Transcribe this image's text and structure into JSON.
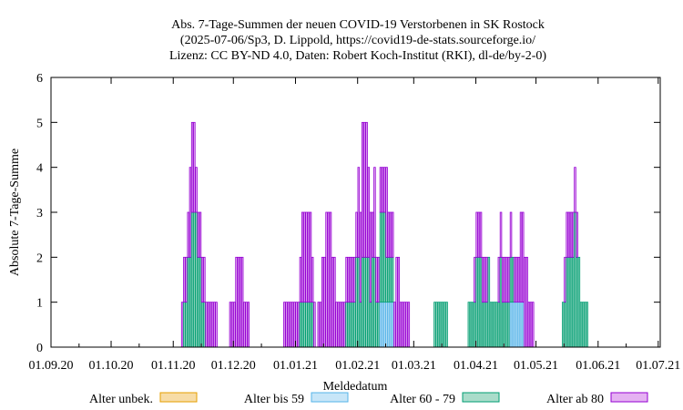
{
  "chart_data": {
    "type": "bar",
    "stacked": true,
    "title": [
      "Abs. 7-Tage-Summen der neuen COVID-19 Verstorbenen in SK Rostock",
      "(2025-07-06/Sp3, D. Lippold, https://covid19-de-stats.sourceforge.io/",
      "Lizenz: CC BY-ND 4.0, Daten: Robert Koch-Institut (RKI), dl-de/by-2-0)"
    ],
    "xlabel": "Meldedatum",
    "ylabel": "Absolute 7-Tage-Summe",
    "x_start": "2020-09-01",
    "x_end": "2021-07-01",
    "ylim": [
      0,
      6
    ],
    "xticks": [
      "01.09.20",
      "01.10.20",
      "01.11.20",
      "01.12.20",
      "01.01.21",
      "01.02.21",
      "01.03.21",
      "01.04.21",
      "01.05.21",
      "01.06.21",
      "01.07.21"
    ],
    "yticks": [
      "0",
      "1",
      "2",
      "3",
      "4",
      "5",
      "6"
    ],
    "grid": false,
    "legend_position": "bottom",
    "series": [
      {
        "name": "Alter unbek.",
        "color": "#e69f00",
        "fill": "#f7dca6",
        "segments": []
      },
      {
        "name": "Alter bis 59",
        "color": "#56b4e9",
        "fill": "#c7e6f8",
        "segments": [
          {
            "start": "2021-02-12",
            "end": "2021-02-18",
            "value": 1
          },
          {
            "start": "2021-04-18",
            "end": "2021-04-24",
            "value": 1
          }
        ]
      },
      {
        "name": "Alter 60 - 79",
        "color": "#009e73",
        "fill": "#a9dcca",
        "segments": [
          {
            "start": "2020-11-06",
            "end": "2020-11-12",
            "value": 1
          },
          {
            "start": "2020-11-08",
            "end": "2020-11-14",
            "value": 1
          },
          {
            "start": "2020-11-10",
            "end": "2020-11-16",
            "value": 1
          },
          {
            "start": "2021-01-03",
            "end": "2021-01-09",
            "value": 1
          },
          {
            "start": "2021-01-26",
            "end": "2021-02-01",
            "value": 1
          },
          {
            "start": "2021-01-31",
            "end": "2021-02-06",
            "value": 1
          },
          {
            "start": "2021-02-03",
            "end": "2021-02-09",
            "value": 1
          },
          {
            "start": "2021-02-08",
            "end": "2021-02-14",
            "value": 1
          },
          {
            "start": "2021-02-12",
            "end": "2021-02-18",
            "value": 1
          },
          {
            "start": "2021-03-11",
            "end": "2021-03-17",
            "value": 1
          },
          {
            "start": "2021-03-28",
            "end": "2021-04-03",
            "value": 1
          },
          {
            "start": "2021-04-01",
            "end": "2021-04-07",
            "value": 1
          },
          {
            "start": "2021-04-07",
            "end": "2021-04-13",
            "value": 1
          },
          {
            "start": "2021-04-13",
            "end": "2021-04-19",
            "value": 1
          },
          {
            "start": "2021-05-14",
            "end": "2021-05-20",
            "value": 1
          },
          {
            "start": "2021-05-16",
            "end": "2021-05-22",
            "value": 1
          },
          {
            "start": "2021-05-20",
            "end": "2021-05-26",
            "value": 1
          }
        ]
      },
      {
        "name": "Alter ab 80",
        "color": "#9400d3",
        "fill": "#e5b1f2",
        "segments": [
          {
            "start": "2020-11-05",
            "end": "2020-11-11",
            "value": 1
          },
          {
            "start": "2020-11-09",
            "end": "2020-11-15",
            "value": 1
          },
          {
            "start": "2020-11-16",
            "end": "2020-11-22",
            "value": 1
          },
          {
            "start": "2020-11-29",
            "end": "2020-12-05",
            "value": 1
          },
          {
            "start": "2020-12-02",
            "end": "2020-12-08",
            "value": 1
          },
          {
            "start": "2020-12-26",
            "end": "2021-01-01",
            "value": 1
          },
          {
            "start": "2021-01-02",
            "end": "2021-01-08",
            "value": 1
          },
          {
            "start": "2021-01-04",
            "end": "2021-01-10",
            "value": 1
          },
          {
            "start": "2021-01-12",
            "end": "2021-01-18",
            "value": 1
          },
          {
            "start": "2021-01-14",
            "end": "2021-01-20",
            "value": 1
          },
          {
            "start": "2021-01-16",
            "end": "2021-01-22",
            "value": 1
          },
          {
            "start": "2021-01-23",
            "end": "2021-01-29",
            "value": 1
          },
          {
            "start": "2021-01-30",
            "end": "2021-02-05",
            "value": 1
          },
          {
            "start": "2021-02-01",
            "end": "2021-02-07",
            "value": 1
          },
          {
            "start": "2021-02-03",
            "end": "2021-02-09",
            "value": 1
          },
          {
            "start": "2021-02-09",
            "end": "2021-02-15",
            "value": 1
          },
          {
            "start": "2021-02-15",
            "end": "2021-02-21",
            "value": 1
          },
          {
            "start": "2021-02-20",
            "end": "2021-02-26",
            "value": 1
          },
          {
            "start": "2021-03-31",
            "end": "2021-04-06",
            "value": 1
          },
          {
            "start": "2021-04-12",
            "end": "2021-04-18",
            "value": 1
          },
          {
            "start": "2021-04-20",
            "end": "2021-04-26",
            "value": 1
          },
          {
            "start": "2021-04-23",
            "end": "2021-04-29",
            "value": 1
          },
          {
            "start": "2021-05-15",
            "end": "2021-05-21",
            "value": 1
          }
        ]
      }
    ]
  }
}
